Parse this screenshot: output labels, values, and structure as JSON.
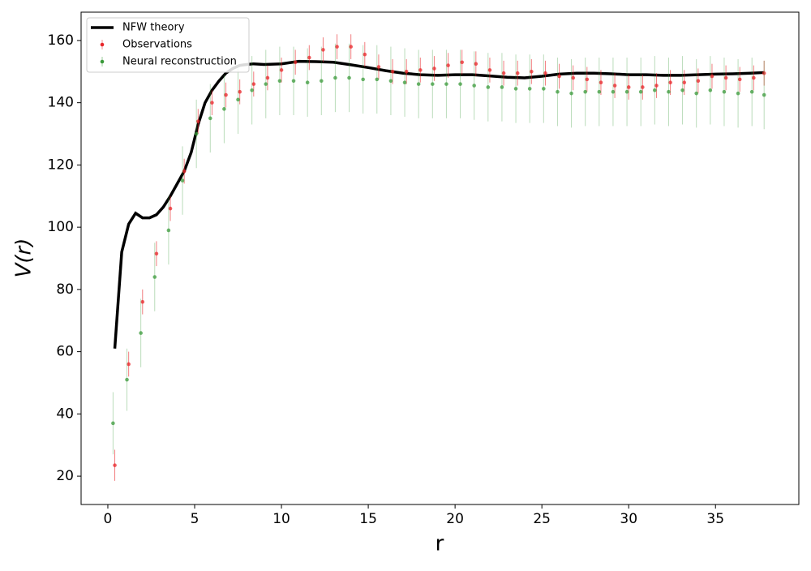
{
  "chart_data": {
    "type": "errorbar",
    "xlabel": "r",
    "ylabel": "V(r)",
    "xlim": [
      -1.54,
      39.8
    ],
    "ylim": [
      10.9,
      169.1
    ],
    "xticks": [
      0,
      5,
      10,
      15,
      20,
      25,
      30,
      35
    ],
    "yticks": [
      20,
      40,
      60,
      80,
      100,
      120,
      140,
      160
    ],
    "grid": false,
    "legend": "upper-left",
    "series": [
      {
        "name": "NFW theory",
        "style": "line",
        "color": "#000000",
        "x": [
          0.4,
          0.8,
          1.2,
          1.6,
          2.0,
          2.4,
          2.8,
          3.2,
          3.6,
          4.0,
          4.4,
          4.8,
          5.2,
          5.6,
          6.0,
          6.4,
          6.8,
          7.2,
          7.6,
          8.0,
          8.4,
          9,
          10,
          11,
          12,
          13,
          14,
          15,
          16,
          17,
          18,
          19,
          20,
          21,
          22,
          23,
          24,
          25,
          26,
          27,
          28,
          29,
          30,
          31,
          32,
          33,
          34,
          35,
          36,
          37,
          37.8
        ],
        "values": [
          61,
          92,
          101,
          104.5,
          103,
          103,
          104,
          106.5,
          110,
          114,
          118,
          124,
          133,
          140,
          144,
          147,
          149.5,
          151,
          152,
          152.3,
          152.5,
          152.3,
          152.5,
          153.3,
          153.2,
          153,
          152.2,
          151.3,
          150.3,
          149.5,
          149,
          148.8,
          149,
          149,
          148.6,
          148.2,
          148,
          148.5,
          149.2,
          149.5,
          149.5,
          149.3,
          149,
          149,
          148.8,
          148.8,
          149,
          149.2,
          149.3,
          149.5,
          149.7
        ]
      },
      {
        "name": "Observations",
        "style": "errorbar",
        "color": "#e8262a",
        "x": [
          0.4,
          1.2,
          2.0,
          2.8,
          3.6,
          4.4,
          5.2,
          6.0,
          6.8,
          7.6,
          8.4,
          9.2,
          10.0,
          10.8,
          11.6,
          12.4,
          13.2,
          14.0,
          14.8,
          15.6,
          16.4,
          17.2,
          18.0,
          18.8,
          19.6,
          20.4,
          21.2,
          22.0,
          22.8,
          23.6,
          24.4,
          25.2,
          26.0,
          26.8,
          27.6,
          28.4,
          29.2,
          30.0,
          30.8,
          31.6,
          32.4,
          33.2,
          34.0,
          34.8,
          35.6,
          36.4,
          37.2,
          37.8
        ],
        "values": [
          23.5,
          56,
          76,
          91.5,
          106,
          118,
          134,
          140,
          142.5,
          143.5,
          146,
          148,
          150.5,
          153,
          154.5,
          157,
          158,
          158,
          155.5,
          151.5,
          150,
          150,
          150.5,
          151,
          152,
          153,
          152.5,
          150.5,
          149.5,
          149.5,
          150,
          149.5,
          148.5,
          148,
          147.5,
          146.5,
          145.5,
          145,
          145,
          145.5,
          146.5,
          146.5,
          147,
          148.5,
          148,
          147.5,
          148,
          149.5
        ],
        "errors": [
          5,
          4,
          4,
          4,
          4,
          4,
          4,
          4,
          4,
          4,
          4,
          4,
          4,
          4,
          4,
          4,
          4,
          4,
          4,
          4,
          4,
          4,
          4,
          4,
          4,
          4,
          4,
          4,
          4,
          4,
          4,
          4,
          4,
          4,
          4,
          4,
          4,
          4,
          4,
          4,
          4,
          4,
          4,
          4,
          4,
          4,
          4,
          4
        ]
      },
      {
        "name": "Neural reconstruction",
        "style": "errorbar",
        "color": "#3a9a3a",
        "x": [
          0.3,
          1.1,
          1.9,
          2.7,
          3.5,
          4.3,
          5.1,
          5.9,
          6.7,
          7.5,
          8.3,
          9.1,
          9.9,
          10.7,
          11.5,
          12.3,
          13.1,
          13.9,
          14.7,
          15.5,
          16.3,
          17.1,
          17.9,
          18.7,
          19.5,
          20.3,
          21.1,
          21.9,
          22.7,
          23.5,
          24.3,
          25.1,
          25.9,
          26.7,
          27.5,
          28.3,
          29.1,
          29.9,
          30.7,
          31.5,
          32.3,
          33.1,
          33.9,
          34.7,
          35.5,
          36.3,
          37.1,
          37.8
        ],
        "values": [
          37,
          51,
          66,
          84,
          99,
          115,
          130,
          135,
          138,
          141,
          144,
          146,
          147,
          147,
          146.5,
          147,
          148,
          148,
          147.5,
          147.5,
          147,
          146.5,
          146,
          146,
          146,
          146,
          145.5,
          145,
          145,
          144.5,
          144.5,
          144.5,
          143.5,
          143,
          143.5,
          143.5,
          143.5,
          143.5,
          143.5,
          144,
          143.5,
          144,
          143,
          144,
          143.5,
          143,
          143.5,
          142.5
        ],
        "errors": [
          10,
          10,
          11,
          11,
          11,
          11,
          11,
          11,
          11,
          11,
          11,
          11,
          11,
          11,
          11,
          11,
          11,
          11,
          11,
          11,
          11,
          11,
          11,
          11,
          11,
          11,
          11,
          11,
          11,
          11,
          11,
          11,
          11,
          11,
          11,
          11,
          11,
          11,
          11,
          11,
          11,
          11,
          11,
          11,
          11,
          11,
          11,
          11
        ]
      }
    ]
  }
}
